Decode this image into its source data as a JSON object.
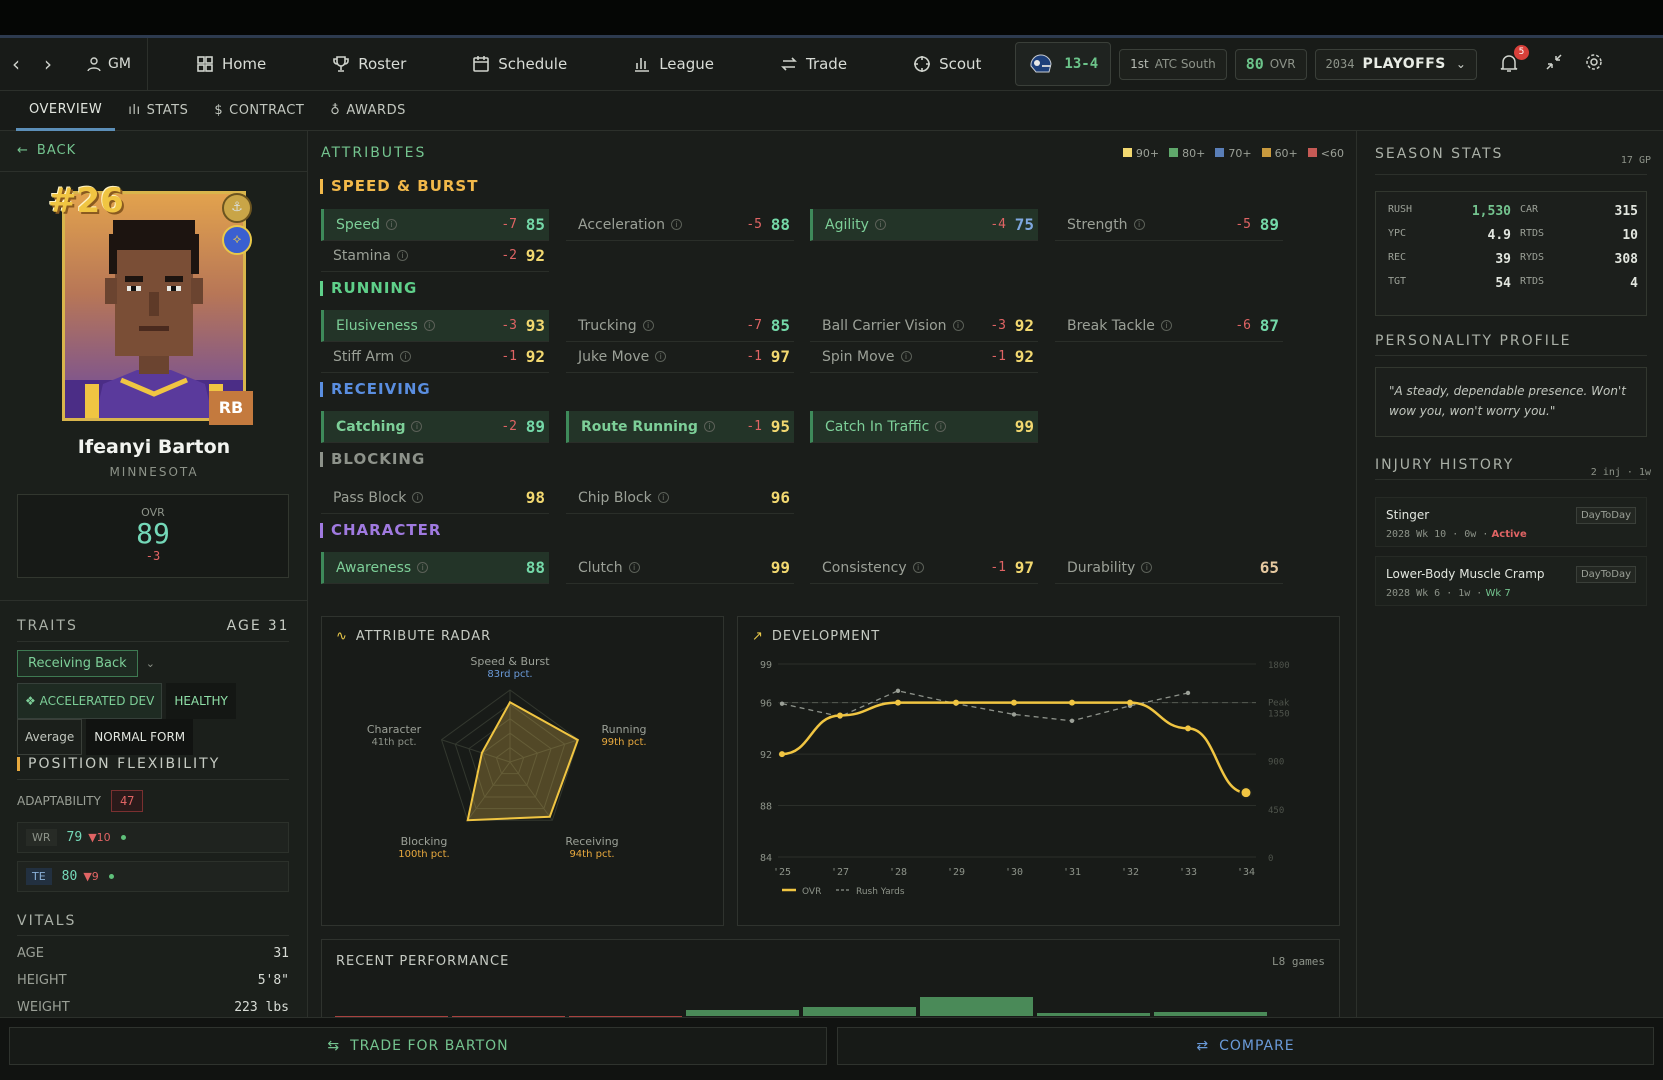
{
  "nav": {
    "gm": "GM",
    "items": [
      {
        "label": "Home",
        "icon": "grid-icon"
      },
      {
        "label": "Roster",
        "icon": "trophy-icon"
      },
      {
        "label": "Schedule",
        "icon": "calendar-icon"
      },
      {
        "label": "League",
        "icon": "bar-chart-icon"
      },
      {
        "label": "Trade",
        "icon": "swap-icon"
      },
      {
        "label": "Scout",
        "icon": "crosshair-icon"
      }
    ],
    "record": "13-4",
    "standing_rank": "1st",
    "standing_div": "ATC South",
    "team_ovr": "80",
    "team_ovr_label": "OVR",
    "season_year": "2034",
    "season_phase": "PLAYOFFS",
    "notifications": "5"
  },
  "subtabs": [
    "OVERVIEW",
    "STATS",
    "CONTRACT",
    "AWARDS"
  ],
  "player": {
    "back": "BACK",
    "number": "#26",
    "position": "RB",
    "name": "Ifeanyi Barton",
    "team": "MINNESOTA",
    "ovr_label": "OVR",
    "ovr": "89",
    "ovr_change": "-3",
    "traits_title": "TRAITS",
    "age_label": "AGE",
    "age": "31",
    "archetype": "Receiving Back",
    "tags": [
      "❖ ACCELERATED DEV",
      "HEALTHY",
      "Average",
      "NORMAL FORM"
    ],
    "flex_title": "POSITION FLEXIBILITY",
    "adaptability_label": "ADAPTABILITY",
    "adaptability": "47",
    "alt_positions": [
      {
        "pos": "WR",
        "ovr": "79",
        "drop": "▼10"
      },
      {
        "pos": "TE",
        "ovr": "80",
        "drop": "▼9"
      }
    ],
    "vitals_title": "VITALS",
    "vitals": [
      {
        "label": "AGE",
        "value": "31"
      },
      {
        "label": "HEIGHT",
        "value": "5'8\""
      },
      {
        "label": "WEIGHT",
        "value": "223 lbs"
      }
    ]
  },
  "attributes": {
    "title": "ATTRIBUTES",
    "legend": [
      {
        "label": "90+",
        "color": "#f2d870"
      },
      {
        "label": "80+",
        "color": "#5fa86b"
      },
      {
        "label": "70+",
        "color": "#5a7fb8"
      },
      {
        "label": "60+",
        "color": "#c99a3e"
      },
      {
        "label": "<60",
        "color": "#c65a55"
      }
    ],
    "categories": [
      {
        "name": "SPEED & BURST",
        "color": "#f2b94a",
        "rows": [
          [
            {
              "n": "Speed",
              "d": "-7",
              "v": "85",
              "hl": true
            },
            {
              "n": "Acceleration",
              "d": "-5",
              "v": "88"
            },
            {
              "n": "Agility",
              "d": "-4",
              "v": "75",
              "hl": true
            },
            {
              "n": "Strength",
              "d": "-5",
              "v": "89"
            }
          ],
          [
            {
              "n": "Stamina",
              "d": "-2",
              "v": "92"
            }
          ]
        ]
      },
      {
        "name": "RUNNING",
        "color": "#5fd08a",
        "rows": [
          [
            {
              "n": "Elusiveness",
              "d": "-3",
              "v": "93",
              "hl": true
            },
            {
              "n": "Trucking",
              "d": "-7",
              "v": "85"
            },
            {
              "n": "Ball Carrier Vision",
              "d": "-3",
              "v": "92"
            },
            {
              "n": "Break Tackle",
              "d": "-6",
              "v": "87"
            }
          ],
          [
            {
              "n": "Stiff Arm",
              "d": "-1",
              "v": "92"
            },
            {
              "n": "Juke Move",
              "d": "-1",
              "v": "97"
            },
            {
              "n": "Spin Move",
              "d": "-1",
              "v": "92"
            }
          ]
        ]
      },
      {
        "name": "RECEIVING",
        "color": "#5a8ee0",
        "rows": [
          [
            {
              "n": "Catching",
              "d": "-2",
              "v": "89",
              "hl": true
            },
            {
              "n": "Route Running",
              "d": "-1",
              "v": "95",
              "hl": true
            },
            {
              "n": "Catch In Traffic",
              "d": "",
              "v": "99",
              "hl": true
            }
          ]
        ]
      },
      {
        "name": "BLOCKING",
        "color": "#8d928a",
        "rows": [
          [
            {
              "n": "Pass Block",
              "d": "",
              "v": "98"
            },
            {
              "n": "Chip Block",
              "d": "",
              "v": "96"
            }
          ]
        ]
      },
      {
        "name": "CHARACTER",
        "color": "#a07ae0",
        "rows": [
          [
            {
              "n": "Awareness",
              "d": "",
              "v": "88",
              "hl": true
            },
            {
              "n": "Clutch",
              "d": "",
              "v": "99"
            },
            {
              "n": "Consistency",
              "d": "-1",
              "v": "97"
            },
            {
              "n": "Durability",
              "d": "",
              "v": "65"
            }
          ]
        ]
      }
    ]
  },
  "radar": {
    "title": "ATTRIBUTE RADAR",
    "axes": [
      {
        "label": "Speed & Burst",
        "pct": "83rd pct.",
        "value": 0.83
      },
      {
        "label": "Running",
        "pct": "99th pct.",
        "value": 0.99
      },
      {
        "label": "Receiving",
        "pct": "94th pct.",
        "value": 0.94
      },
      {
        "label": "Blocking",
        "pct": "100th pct.",
        "value": 1.0
      },
      {
        "label": "Character",
        "pct": "41th pct.",
        "value": 0.41
      }
    ]
  },
  "development": {
    "title": "DEVELOPMENT",
    "peak_label": "Peak",
    "legend_ovr": "OVR",
    "legend_rush": "Rush Yards"
  },
  "chart_data": {
    "type": "line",
    "x": [
      "'25",
      "'27",
      "'28",
      "'29",
      "'30",
      "'31",
      "'32",
      "'33",
      "'34"
    ],
    "y_ticks_left": [
      "99",
      "96",
      "92",
      "88",
      "84"
    ],
    "y_ticks_right": [
      "1800",
      "1350",
      "900",
      "450",
      "0"
    ],
    "ylim": [
      84,
      99
    ],
    "ylim_right": [
      0,
      1800
    ],
    "peak_ovr": 96,
    "series": [
      {
        "name": "OVR",
        "values": [
          92,
          95,
          96,
          96,
          96,
          96,
          96,
          94,
          89
        ],
        "color": "#f2c95b"
      },
      {
        "name": "Rush Yards",
        "values": [
          1430,
          1310,
          1550,
          1430,
          1330,
          1270,
          1410,
          1530,
          null
        ],
        "color": "#8d928a"
      }
    ]
  },
  "recent": {
    "title": "RECENT PERFORMANCE",
    "count": "L8 games",
    "bars": [
      {
        "value": -0.4,
        "color": "#a8423f"
      },
      {
        "value": -0.4,
        "color": "#a8423f"
      },
      {
        "value": -0.4,
        "color": "#a8423f"
      },
      {
        "value": 0.6,
        "color": "#4a8a58"
      },
      {
        "value": 0.9,
        "color": "#4a8a58"
      },
      {
        "value": 1.9,
        "color": "#4a8a58"
      },
      {
        "value": 0.3,
        "color": "#4a8a58"
      },
      {
        "value": 0.4,
        "color": "#4a8a58"
      }
    ]
  },
  "season": {
    "title": "SEASON STATS",
    "gp": "17 GP",
    "rows": [
      {
        "l1": "RUSH",
        "v1": "1,530",
        "l2": "CAR",
        "v2": "315"
      },
      {
        "l1": "YPC",
        "v1": "4.9",
        "l2": "RTDS",
        "v2": "10"
      },
      {
        "l1": "REC",
        "v1": "39",
        "l2": "RYDS",
        "v2": "308"
      },
      {
        "l1": "TGT",
        "v1": "54",
        "l2": "RTDS",
        "v2": "4"
      }
    ]
  },
  "personality": {
    "title": "PERSONALITY PROFILE",
    "quote": "\"A steady, dependable presence. Won't wow you, won't worry you.\""
  },
  "injuries": {
    "title": "INJURY HISTORY",
    "summary": "2 inj · 1w",
    "items": [
      {
        "name": "Stinger",
        "badge": "DayToDay",
        "meta": "2028 Wk 10 · 0w ·",
        "status": "Active"
      },
      {
        "name": "Lower-Body Muscle Cramp",
        "badge": "DayToDay",
        "meta": "2028 Wk 6 · 1w ·",
        "status": "Wk 7"
      }
    ]
  },
  "actions": {
    "trade": "TRADE FOR BARTON",
    "compare": "COMPARE"
  }
}
